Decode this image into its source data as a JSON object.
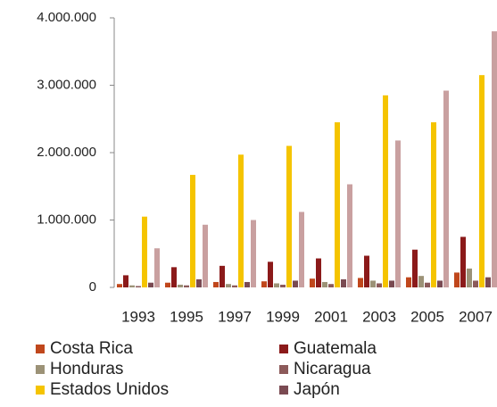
{
  "chart_data": {
    "type": "bar",
    "categories": [
      "1993",
      "1995",
      "1997",
      "1999",
      "2001",
      "2003",
      "2005",
      "2007"
    ],
    "series": [
      {
        "name": "Costa Rica",
        "color": "#c0471c",
        "values": [
          50000,
          70000,
          80000,
          90000,
          130000,
          140000,
          150000,
          220000
        ]
      },
      {
        "name": "Guatemala",
        "color": "#8b1a1a",
        "values": [
          180000,
          300000,
          320000,
          380000,
          430000,
          470000,
          560000,
          750000
        ]
      },
      {
        "name": "Honduras",
        "color": "#9c9277",
        "values": [
          30000,
          40000,
          50000,
          60000,
          80000,
          100000,
          170000,
          280000
        ]
      },
      {
        "name": "Nicaragua",
        "color": "#8c5a5a",
        "values": [
          20000,
          30000,
          30000,
          40000,
          50000,
          60000,
          70000,
          100000
        ]
      },
      {
        "name": "Estados Unidos",
        "color": "#f5c400",
        "values": [
          1050000,
          1670000,
          1970000,
          2100000,
          2450000,
          2850000,
          2450000,
          3150000
        ]
      },
      {
        "name": "Japón",
        "color": "#7a4a52",
        "values": [
          70000,
          120000,
          80000,
          100000,
          120000,
          100000,
          100000,
          150000
        ]
      },
      {
        "color": "#c9a0a0",
        "values": [
          580000,
          930000,
          1000000,
          1120000,
          1530000,
          2180000,
          2920000,
          3800000
        ]
      }
    ],
    "ylim": [
      0,
      4000000
    ],
    "yticks": [
      0,
      {
        "value": 1000000,
        "label": "1.000.000"
      },
      {
        "value": 2000000,
        "label": "2.000.000"
      },
      {
        "value": 3000000,
        "label": "3.000.000"
      },
      {
        "value": 4000000,
        "label": "4.000.000"
      }
    ]
  }
}
